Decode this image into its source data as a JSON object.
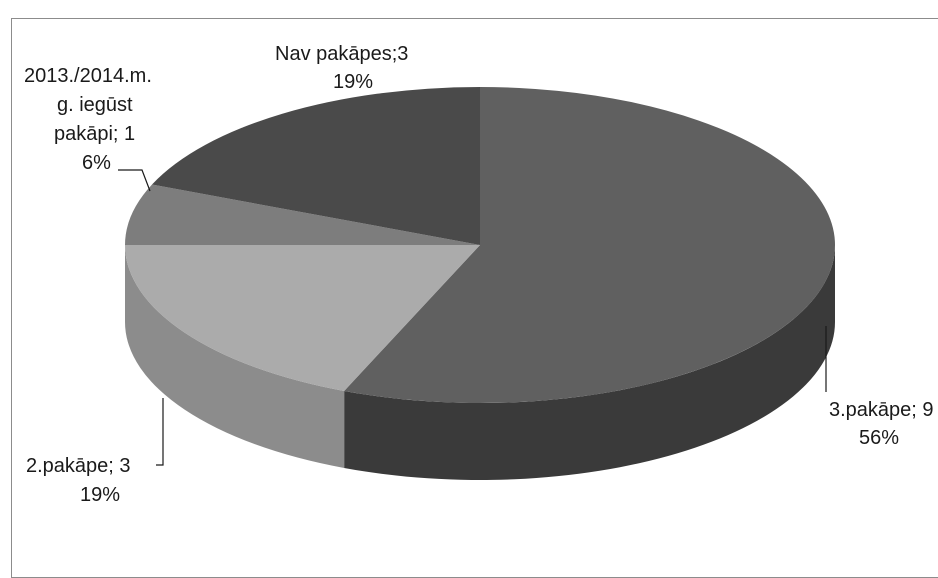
{
  "chart_data": {
    "type": "pie",
    "style": "3d",
    "slices": [
      {
        "name": "3.pakāpe",
        "value": 9,
        "percent": "56%",
        "label": "3.pakāpe; 9",
        "color": "#606060",
        "side": "#3a3a3a"
      },
      {
        "name": "2.pakāpe",
        "value": 3,
        "percent": "19%",
        "label": "2.pakāpe; 3",
        "color": "#ababab",
        "side": "#8c8c8c"
      },
      {
        "name": "2013./2014.m.g. iegūst pakāpi",
        "value": 1,
        "percent": "6%",
        "label_lines": [
          "2013./2014.m.",
          "g. iegūst",
          "pakāpi; 1"
        ],
        "color": "#7d7d7d",
        "side": "#5e5e5e"
      },
      {
        "name": "Nav pakāpes",
        "value": 3,
        "percent": "19%",
        "label": "Nav pakāpes;3",
        "color": "#4a4a4a",
        "side": "#2e2e2e"
      }
    ]
  }
}
